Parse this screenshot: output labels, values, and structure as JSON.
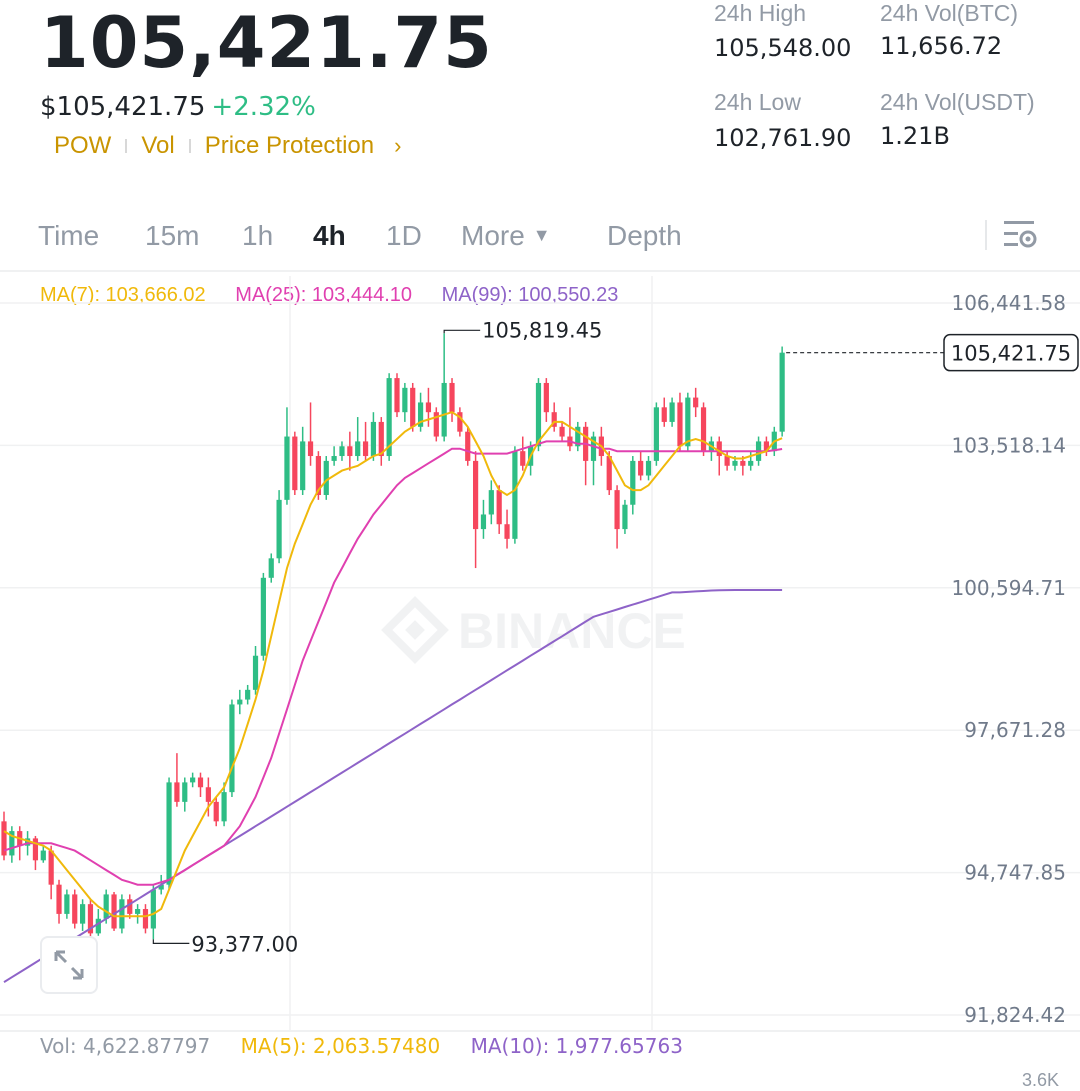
{
  "header": {
    "last_price": "105,421.75",
    "usd_price": "$105,421.75",
    "change": "+2.32%",
    "tags": [
      "POW",
      "Vol",
      "Price Protection"
    ],
    "chevron": "›"
  },
  "stats": {
    "high_label": "24h High",
    "high_value": "105,548.00",
    "low_label": "24h Low",
    "low_value": "102,761.90",
    "vol_btc_label": "24h Vol(BTC)",
    "vol_btc_value": "11,656.72",
    "vol_usdt_label": "24h Vol(USDT)",
    "vol_usdt_value": "1.21B"
  },
  "tabs": [
    {
      "label": "Time"
    },
    {
      "label": "15m"
    },
    {
      "label": "1h"
    },
    {
      "label": "4h",
      "active": true
    },
    {
      "label": "1D"
    },
    {
      "label": "More"
    },
    {
      "label": "Depth"
    }
  ],
  "more_caret": "▼",
  "ma": {
    "ma7": "MA(7): 103,666.02",
    "ma25": "MA(25): 103,444.10",
    "ma99": "MA(99): 100,550.23"
  },
  "chart_data": {
    "type": "candlestick",
    "y_ticks": [
      "106,441.58",
      "103,518.14",
      "100,594.71",
      "97,671.28",
      "94,747.85",
      "91,824.42"
    ],
    "y_tick_values": [
      106441.58,
      103518.14,
      100594.71,
      97671.28,
      94747.85,
      91824.42
    ],
    "current_price_label": "105,421.75",
    "current_price": 105421.75,
    "high_marker": "105,819.45",
    "high_marker_value": 105819.45,
    "low_marker": "93,377.00",
    "low_marker_value": 93377.0,
    "watermark": "BINANCE",
    "candles": [
      [
        95800,
        95100,
        96000,
        95000
      ],
      [
        95100,
        95600,
        95700,
        94950
      ],
      [
        95600,
        95300,
        95700,
        95000
      ],
      [
        95300,
        95450,
        95600,
        95100
      ],
      [
        95450,
        95000,
        95500,
        94800
      ],
      [
        95000,
        95200,
        95300,
        94950
      ],
      [
        95200,
        94500,
        95300,
        94200
      ],
      [
        94500,
        93900,
        94600,
        93700
      ],
      [
        93900,
        94300,
        94400,
        93800
      ],
      [
        94300,
        93700,
        94400,
        93600
      ],
      [
        93700,
        94100,
        94200,
        93550
      ],
      [
        94100,
        93500,
        94200,
        93400
      ],
      [
        93500,
        93800,
        94000,
        93450
      ],
      [
        93800,
        94300,
        94400,
        93700
      ],
      [
        94300,
        93600,
        94350,
        93550
      ],
      [
        93600,
        94200,
        94300,
        93500
      ],
      [
        94200,
        93900,
        94300,
        93800
      ],
      [
        93900,
        94000,
        94100,
        93700
      ],
      [
        94000,
        93600,
        94100,
        93500
      ],
      [
        93600,
        94400,
        94500,
        93377
      ],
      [
        94400,
        94500,
        94700,
        94300
      ],
      [
        94500,
        96600,
        96700,
        94400
      ],
      [
        96600,
        96200,
        97200,
        96100
      ],
      [
        96200,
        96600,
        96700,
        96000
      ],
      [
        96600,
        96700,
        96800,
        96500
      ],
      [
        96700,
        96500,
        96800,
        96300
      ],
      [
        96500,
        96200,
        96700,
        95900
      ],
      [
        96200,
        95800,
        96300,
        95700
      ],
      [
        95800,
        96400,
        96600,
        95700
      ],
      [
        96400,
        98200,
        98300,
        96300
      ],
      [
        98200,
        98300,
        98500,
        98000
      ],
      [
        98300,
        98500,
        98600,
        98200
      ],
      [
        98500,
        99200,
        99400,
        98400
      ],
      [
        99200,
        100800,
        100900,
        99100
      ],
      [
        100800,
        101200,
        101300,
        100700
      ],
      [
        101200,
        102400,
        102600,
        101100
      ],
      [
        102400,
        103700,
        104300,
        102300
      ],
      [
        103700,
        102600,
        103800,
        102500
      ],
      [
        102600,
        103600,
        103900,
        102500
      ],
      [
        103600,
        103300,
        104400,
        103100
      ],
      [
        103300,
        102500,
        103400,
        102400
      ],
      [
        102500,
        103200,
        103300,
        102400
      ],
      [
        103200,
        103300,
        103500,
        103100
      ],
      [
        103300,
        103500,
        103600,
        103200
      ],
      [
        103500,
        103300,
        103800,
        103000
      ],
      [
        103300,
        103600,
        104100,
        103200
      ],
      [
        103600,
        103300,
        104000,
        103200
      ],
      [
        103300,
        104000,
        104200,
        103200
      ],
      [
        104000,
        103300,
        104100,
        103100
      ],
      [
        103300,
        104900,
        105000,
        103200
      ],
      [
        104900,
        104200,
        105000,
        104100
      ],
      [
        104200,
        104700,
        104800,
        104000
      ],
      [
        104700,
        103900,
        104800,
        103800
      ],
      [
        103900,
        104400,
        104600,
        103800
      ],
      [
        104400,
        104200,
        104700,
        103900
      ],
      [
        104200,
        103700,
        104300,
        103600
      ],
      [
        103700,
        104800,
        105819.45,
        103600
      ],
      [
        104800,
        104200,
        104900,
        104000
      ],
      [
        104200,
        103800,
        104300,
        103700
      ],
      [
        103800,
        103200,
        103900,
        103100
      ],
      [
        103200,
        101800,
        103400,
        101000
      ],
      [
        101800,
        102100,
        102400,
        101600
      ],
      [
        102100,
        102600,
        102800,
        101900
      ],
      [
        102600,
        101900,
        102700,
        101700
      ],
      [
        101900,
        101600,
        102200,
        101400
      ],
      [
        101600,
        103400,
        103500,
        101500
      ],
      [
        103400,
        103100,
        103700,
        103000
      ],
      [
        103100,
        103500,
        103600,
        102900
      ],
      [
        103500,
        104800,
        104900,
        103400
      ],
      [
        104800,
        104200,
        104900,
        104000
      ],
      [
        104200,
        103900,
        104400,
        103800
      ],
      [
        103900,
        103700,
        104000,
        103600
      ],
      [
        103700,
        103500,
        104300,
        103400
      ],
      [
        103500,
        103900,
        104000,
        103400
      ],
      [
        103900,
        103200,
        104000,
        102700
      ],
      [
        103200,
        103700,
        103800,
        102700
      ],
      [
        103700,
        103300,
        103900,
        103100
      ],
      [
        103300,
        102600,
        103400,
        102500
      ],
      [
        102600,
        101800,
        102700,
        101400
      ],
      [
        101800,
        102300,
        102400,
        101700
      ],
      [
        102300,
        103200,
        103300,
        102100
      ],
      [
        103200,
        102900,
        103400,
        102800
      ],
      [
        102900,
        103200,
        103300,
        102800
      ],
      [
        103200,
        104300,
        104400,
        103100
      ],
      [
        104300,
        104000,
        104500,
        103900
      ],
      [
        104000,
        104400,
        104500,
        103900
      ],
      [
        104400,
        103500,
        104600,
        103400
      ],
      [
        103500,
        104500,
        104600,
        103400
      ],
      [
        104500,
        104300,
        104700,
        104100
      ],
      [
        104300,
        103400,
        104400,
        103300
      ],
      [
        103400,
        103600,
        103700,
        103200
      ],
      [
        103600,
        103300,
        103700,
        102900
      ],
      [
        103300,
        103100,
        103400,
        103000
      ],
      [
        103100,
        103200,
        103300,
        103000
      ],
      [
        103200,
        103100,
        103300,
        102900
      ],
      [
        103100,
        103200,
        103400,
        103000
      ],
      [
        103200,
        103600,
        103700,
        103100
      ],
      [
        103600,
        103400,
        103700,
        103300
      ],
      [
        103400,
        103800,
        103900,
        103300
      ],
      [
        103800,
        105421.75,
        105548,
        103700
      ]
    ],
    "ma7": [
      95600,
      95500,
      95450,
      95400,
      95350,
      95300,
      95200,
      95000,
      94800,
      94600,
      94400,
      94200,
      94050,
      93950,
      93850,
      93850,
      93850,
      93850,
      93850,
      93900,
      94000,
      94400,
      94800,
      95200,
      95500,
      95800,
      96100,
      96300,
      96500,
      96900,
      97300,
      97800,
      98300,
      98900,
      99600,
      100300,
      101000,
      101500,
      101900,
      102300,
      102600,
      102800,
      102900,
      103000,
      103050,
      103100,
      103200,
      103300,
      103350,
      103500,
      103650,
      103800,
      103900,
      104000,
      104050,
      104100,
      104150,
      104200,
      104100,
      103900,
      103600,
      103300,
      102900,
      102600,
      102500,
      102600,
      102900,
      103300,
      103600,
      103800,
      104000,
      104000,
      103900,
      103800,
      103700,
      103600,
      103500,
      103300,
      103000,
      102700,
      102600,
      102600,
      102700,
      102900,
      103100,
      103300,
      103500,
      103600,
      103650,
      103600,
      103500,
      103400,
      103300,
      103250,
      103250,
      103300,
      103350,
      103400,
      103600,
      103666.02
    ],
    "ma25": [
      95200,
      95250,
      95300,
      95350,
      95350,
      95350,
      95350,
      95300,
      95250,
      95200,
      95100,
      95000,
      94900,
      94800,
      94700,
      94600,
      94550,
      94500,
      94500,
      94500,
      94550,
      94600,
      94700,
      94800,
      94900,
      95000,
      95100,
      95200,
      95300,
      95500,
      95700,
      96000,
      96300,
      96700,
      97100,
      97600,
      98100,
      98600,
      99100,
      99500,
      99900,
      100300,
      100700,
      101000,
      101300,
      101600,
      101850,
      102100,
      102300,
      102500,
      102700,
      102850,
      102950,
      103050,
      103150,
      103250,
      103350,
      103450,
      103450,
      103400,
      103350,
      103350,
      103350,
      103350,
      103350,
      103400,
      103450,
      103500,
      103550,
      103600,
      103600,
      103600,
      103600,
      103550,
      103550,
      103500,
      103450,
      103450,
      103400,
      103400,
      103400,
      103400,
      103400,
      103400,
      103400,
      103400,
      103400,
      103400,
      103400,
      103400,
      103400,
      103400,
      103400,
      103400,
      103400,
      103400,
      103400,
      103400,
      103420,
      103444.1
    ],
    "ma99": [
      92500,
      92600,
      92700,
      92800,
      92900,
      93000,
      93100,
      93200,
      93300,
      93400,
      93500,
      93600,
      93700,
      93800,
      93900,
      94000,
      94100,
      94200,
      94300,
      94400,
      94500,
      94600,
      94700,
      94800,
      94900,
      95000,
      95100,
      95200,
      95300,
      95400,
      95500,
      95600,
      95700,
      95800,
      95900,
      96000,
      96100,
      96200,
      96300,
      96400,
      96500,
      96600,
      96700,
      96800,
      96900,
      97000,
      97100,
      97200,
      97300,
      97400,
      97500,
      97600,
      97700,
      97800,
      97900,
      98000,
      98100,
      98200,
      98300,
      98400,
      98500,
      98600,
      98700,
      98800,
      98900,
      99000,
      99100,
      99200,
      99300,
      99400,
      99500,
      99600,
      99700,
      99800,
      99900,
      100000,
      100050,
      100100,
      100150,
      100200,
      100250,
      100300,
      100350,
      100400,
      100450,
      100500,
      100500,
      100510,
      100520,
      100530,
      100540,
      100545,
      100548,
      100550,
      100550,
      100550,
      100550,
      100550,
      100550,
      100550.23
    ]
  },
  "volume": {
    "vol": "Vol: 4,622.87797",
    "ma5": "MA(5): 2,063.57480",
    "ma10": "MA(10): 1,977.65763",
    "axis_partial": "3.6K"
  },
  "colors": {
    "up": "#2ebd85",
    "down": "#f6465d",
    "ma7": "#f0b90b",
    "ma25": "#e040b0",
    "ma99": "#8e63c8",
    "accent": "#c99400",
    "muted": "#929aa5"
  }
}
